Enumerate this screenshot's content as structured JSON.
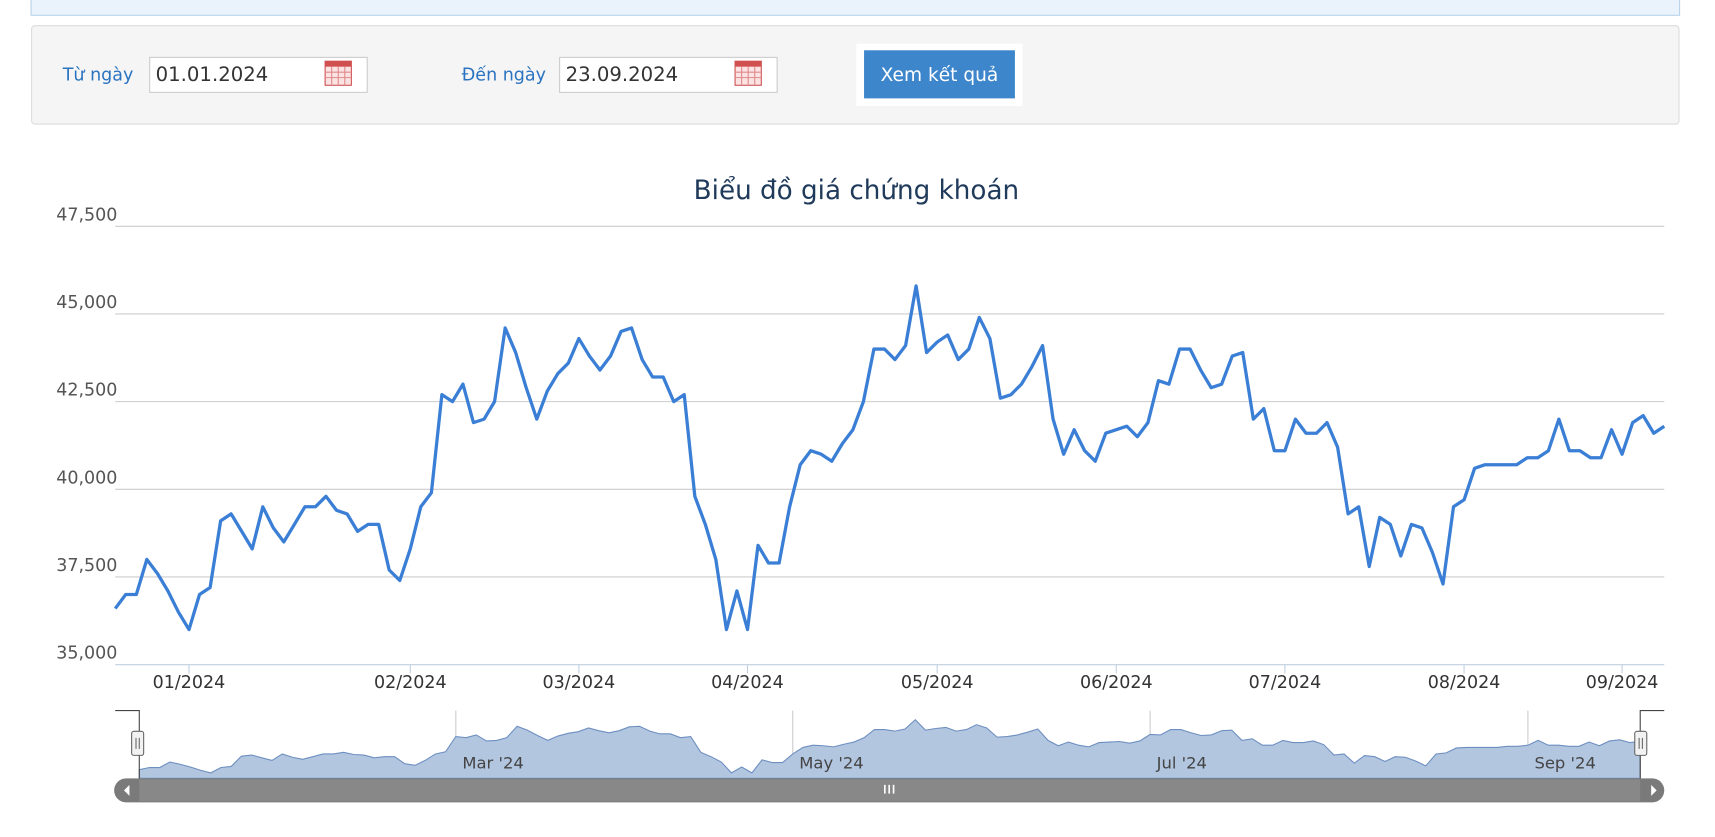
{
  "form": {
    "from_label": "Từ ngày",
    "from_value": "01.01.2024",
    "to_label": "Đến ngày",
    "to_value": "23.09.2024",
    "button": "Xem kết quả"
  },
  "chart_data": {
    "type": "line",
    "title": "Biểu đồ giá chứng khoán",
    "color": "#3a7fd5",
    "grid": true,
    "values": [
      36600,
      37000,
      37000,
      38000,
      37600,
      37100,
      36500,
      36000,
      37000,
      37200,
      39100,
      39300,
      38800,
      38300,
      39500,
      38900,
      38500,
      39000,
      39500,
      39500,
      39800,
      39400,
      39300,
      38800,
      39000,
      39000,
      37700,
      37400,
      38300,
      39500,
      39900,
      42700,
      42500,
      43000,
      41900,
      42000,
      42500,
      44600,
      43900,
      42900,
      42000,
      42800,
      43300,
      43600,
      44300,
      43800,
      43400,
      43800,
      44500,
      44600,
      43700,
      43200,
      43200,
      42500,
      42700,
      39800,
      39000,
      38000,
      36000,
      37100,
      36000,
      38400,
      37900,
      37900,
      39500,
      40700,
      41100,
      41000,
      40800,
      41300,
      41700,
      42500,
      44000,
      44000,
      43700,
      44100,
      45800,
      43900,
      44200,
      44400,
      43700,
      44000,
      44900,
      44300,
      42600,
      42700,
      43000,
      43500,
      44100,
      42000,
      41000,
      41700,
      41100,
      40800,
      41600,
      41700,
      41800,
      41500,
      41900,
      43100,
      43000,
      44000,
      44000,
      43400,
      42900,
      43000,
      43800,
      43900,
      42000,
      42300,
      41100,
      41100,
      42000,
      41600,
      41600,
      41900,
      41200,
      39300,
      39500,
      37800,
      39200,
      39000,
      38100,
      39000,
      38900,
      38200,
      37300,
      39500,
      39700,
      40600,
      40700,
      40700,
      40700,
      40700,
      40900,
      40900,
      41100,
      42000,
      41100,
      41100,
      40900,
      40900,
      41700,
      41000,
      41900,
      42100,
      41600,
      41800
    ],
    "ylim": [
      35000,
      47500
    ],
    "yticks": [
      {
        "value": 35000,
        "label": "35,000"
      },
      {
        "value": 37500,
        "label": "37,500"
      },
      {
        "value": 40000,
        "label": "40,000"
      },
      {
        "value": 42500,
        "label": "42,500"
      },
      {
        "value": 45000,
        "label": "45,000"
      },
      {
        "value": 47500,
        "label": "47,500"
      }
    ],
    "xticks": [
      {
        "value": 7,
        "label": "01/2024"
      },
      {
        "value": 28,
        "label": "02/2024"
      },
      {
        "value": 44,
        "label": "03/2024"
      },
      {
        "value": 60,
        "label": "04/2024"
      },
      {
        "value": 78,
        "label": "05/2024"
      },
      {
        "value": 95,
        "label": "06/2024"
      },
      {
        "value": 111,
        "label": "07/2024"
      },
      {
        "value": 128,
        "label": "08/2024"
      },
      {
        "value": 143,
        "label": "09/2024"
      }
    ],
    "navigator_ticks": [
      {
        "value": 31,
        "label": "Mar '24"
      },
      {
        "value": 64,
        "label": "May '24"
      },
      {
        "value": 99,
        "label": "Jul '24"
      },
      {
        "value": 136,
        "label": "Sep '24"
      }
    ]
  }
}
